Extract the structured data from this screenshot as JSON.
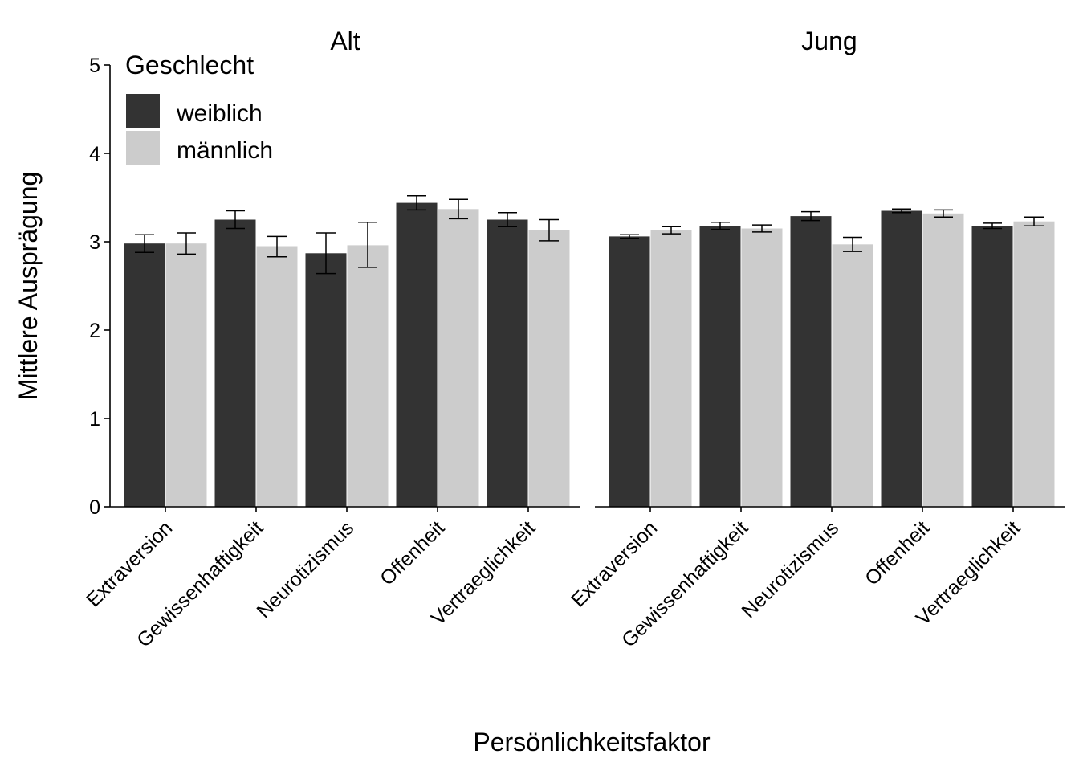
{
  "chart_data": {
    "type": "bar",
    "xlabel": "Persönlichkeitsfaktor",
    "ylabel": "Mittlere Ausprägung",
    "ylim": [
      0,
      5
    ],
    "yticks": [
      "0",
      "1",
      "2",
      "3",
      "4",
      "5"
    ],
    "grid": false,
    "legend": {
      "title": "Geschlecht",
      "position": "top-left inside first panel",
      "entries": [
        {
          "label": "weiblich",
          "color": "#333333"
        },
        {
          "label": "männlich",
          "color": "#cccccc"
        }
      ]
    },
    "categories": [
      "Extraversion",
      "Gewissenhaftigkeit",
      "Neurotizismus",
      "Offenheit",
      "Vertraeglichkeit"
    ],
    "panels": [
      {
        "title": "Alt",
        "series": [
          {
            "name": "weiblich",
            "values": [
              2.98,
              3.25,
              2.87,
              3.44,
              3.25
            ],
            "err_low": [
              2.88,
              3.15,
              2.64,
              3.36,
              3.17
            ],
            "err_high": [
              3.08,
              3.35,
              3.1,
              3.52,
              3.33
            ]
          },
          {
            "name": "männlich",
            "values": [
              2.98,
              2.95,
              2.96,
              3.37,
              3.13
            ],
            "err_low": [
              2.86,
              2.83,
              2.71,
              3.26,
              3.01
            ],
            "err_high": [
              3.1,
              3.06,
              3.22,
              3.48,
              3.25
            ]
          }
        ]
      },
      {
        "title": "Jung",
        "series": [
          {
            "name": "weiblich",
            "values": [
              3.06,
              3.18,
              3.29,
              3.35,
              3.18
            ],
            "err_low": [
              3.04,
              3.14,
              3.24,
              3.33,
              3.15
            ],
            "err_high": [
              3.08,
              3.22,
              3.34,
              3.37,
              3.21
            ]
          },
          {
            "name": "männlich",
            "values": [
              3.13,
              3.15,
              2.97,
              3.32,
              3.23
            ],
            "err_low": [
              3.09,
              3.11,
              2.89,
              3.28,
              3.18
            ],
            "err_high": [
              3.17,
              3.19,
              3.05,
              3.36,
              3.28
            ]
          }
        ]
      }
    ]
  }
}
